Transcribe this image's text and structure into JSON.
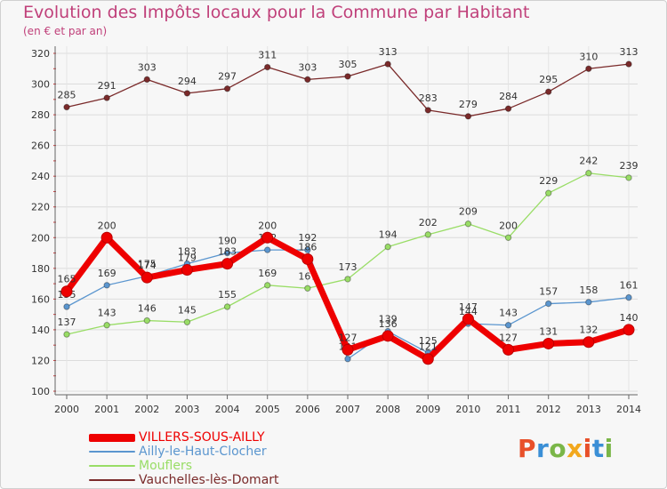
{
  "header": {
    "title": "Evolution des Impôts locaux pour la Commune par Habitant",
    "subtitle": "(en € et par an)"
  },
  "logo": {
    "text": "Proxiti",
    "colors": [
      "#e8502a",
      "#3a8fd6",
      "#7ab648",
      "#f2a81d"
    ]
  },
  "chart_data": {
    "type": "line",
    "title": "Evolution des Impôts locaux pour la Commune par Habitant",
    "subtitle": "(en € et par an)",
    "xlabel": "",
    "ylabel": "",
    "ylim": [
      100,
      320
    ],
    "yticks": [
      100,
      120,
      140,
      160,
      180,
      200,
      220,
      240,
      260,
      280,
      300,
      320
    ],
    "categories": [
      "2000",
      "2001",
      "2002",
      "2003",
      "2004",
      "2005",
      "2006",
      "2007",
      "2008",
      "2009",
      "2010",
      "2011",
      "2012",
      "2013",
      "2014"
    ],
    "grid": true,
    "legend_position": "bottom-left",
    "series": [
      {
        "name": "Vauchelles-lès-Domart",
        "color": "#7a2a2a",
        "values": [
          285,
          291,
          303,
          294,
          297,
          311,
          303,
          305,
          313,
          283,
          279,
          284,
          295,
          310,
          313
        ]
      },
      {
        "name": "Mouflers",
        "color": "#99dd66",
        "values": [
          137,
          143,
          146,
          145,
          155,
          169,
          167,
          173,
          194,
          202,
          209,
          200,
          229,
          242,
          239
        ]
      },
      {
        "name": "Ailly-le-Haut-Clocher",
        "color": "#5b96cf",
        "values": [
          155,
          169,
          175,
          183,
          190,
          192,
          192,
          121,
          139,
          125,
          144,
          143,
          157,
          158,
          161
        ]
      },
      {
        "name": "VILLERS-SOUS-AILLY",
        "color": "#ee0000",
        "values": [
          165,
          200,
          174,
          179,
          183,
          200,
          186,
          127,
          136,
          121,
          147,
          127,
          131,
          132,
          140
        ]
      }
    ]
  }
}
